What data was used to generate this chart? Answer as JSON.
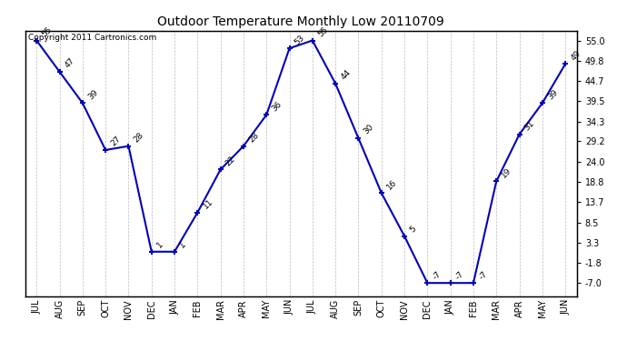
{
  "months": [
    "JUL",
    "AUG",
    "SEP",
    "OCT",
    "NOV",
    "DEC",
    "JAN",
    "FEB",
    "MAR",
    "APR",
    "MAY",
    "JUN",
    "JUL",
    "AUG",
    "SEP",
    "OCT",
    "NOV",
    "DEC",
    "JAN",
    "FEB",
    "MAR",
    "APR",
    "MAY",
    "JUN"
  ],
  "values": [
    55,
    47,
    39,
    27,
    28,
    1,
    1,
    11,
    22,
    28,
    36,
    53,
    55,
    44,
    30,
    16,
    5,
    -7,
    -7,
    -7,
    19,
    31,
    39,
    49
  ],
  "labels": [
    "55",
    "47",
    "39",
    "27",
    "28",
    "1",
    "1",
    "11",
    "22",
    "28",
    "36",
    "53",
    "55",
    "44",
    "30",
    "16",
    "5",
    "-7",
    "-7",
    "-7",
    "19",
    "31",
    "39",
    "49"
  ],
  "title": "Outdoor Temperature Monthly Low 20110709",
  "copyright": "Copyright 2011 Cartronics.com",
  "line_color": "#0000bb",
  "grid_color": "#bbbbbb",
  "background_color": "#ffffff",
  "yticks": [
    -7.0,
    -1.8,
    3.3,
    8.5,
    13.7,
    18.8,
    24.0,
    29.2,
    34.3,
    39.5,
    44.7,
    49.8,
    55.0
  ],
  "ylabel_right": [
    "-7.0",
    "-1.8",
    "3.3",
    "8.5",
    "13.7",
    "18.8",
    "24.0",
    "29.2",
    "34.3",
    "39.5",
    "44.7",
    "49.8",
    "55.0"
  ],
  "ylim_min": -10.5,
  "ylim_max": 57.5
}
